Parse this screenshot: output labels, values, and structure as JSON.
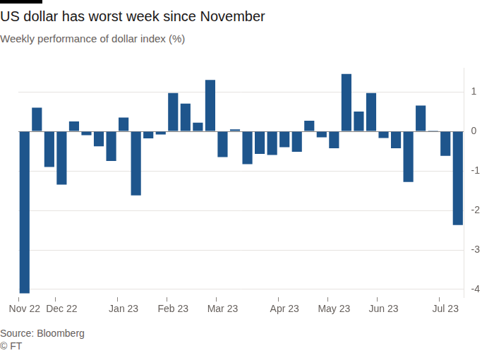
{
  "chart_data": {
    "type": "bar",
    "title": "US dollar has worst week since November",
    "subtitle": "Weekly performance of dollar index (%)",
    "source": "Source: Bloomberg",
    "credit": "© FT",
    "categories": [
      "Nov 22",
      null,
      null,
      "Dec 22",
      null,
      null,
      null,
      null,
      "Jan 23",
      null,
      null,
      null,
      "Feb 23",
      null,
      null,
      null,
      "Mar 23",
      null,
      null,
      null,
      null,
      "Apr 23",
      null,
      null,
      null,
      "May 23",
      null,
      null,
      null,
      "Jun 23",
      null,
      null,
      null,
      null,
      "Jul 23",
      null
    ],
    "values": [
      -4.1,
      0.6,
      -0.9,
      -1.35,
      0.25,
      -0.1,
      -0.38,
      -0.75,
      0.35,
      -1.62,
      -0.18,
      -0.08,
      0.97,
      0.7,
      0.22,
      1.3,
      -0.65,
      0.05,
      -0.83,
      -0.57,
      -0.6,
      -0.4,
      -0.52,
      0.27,
      -0.15,
      -0.43,
      1.45,
      0.5,
      0.97,
      -0.17,
      -0.43,
      -1.28,
      0.65,
      0.02,
      -0.62,
      -2.37
    ],
    "color": "#1e558c",
    "ylim": [
      -4.2,
      1.6
    ],
    "yticks": [
      -4,
      -3,
      -2,
      -1,
      0,
      1
    ],
    "grid": true
  }
}
